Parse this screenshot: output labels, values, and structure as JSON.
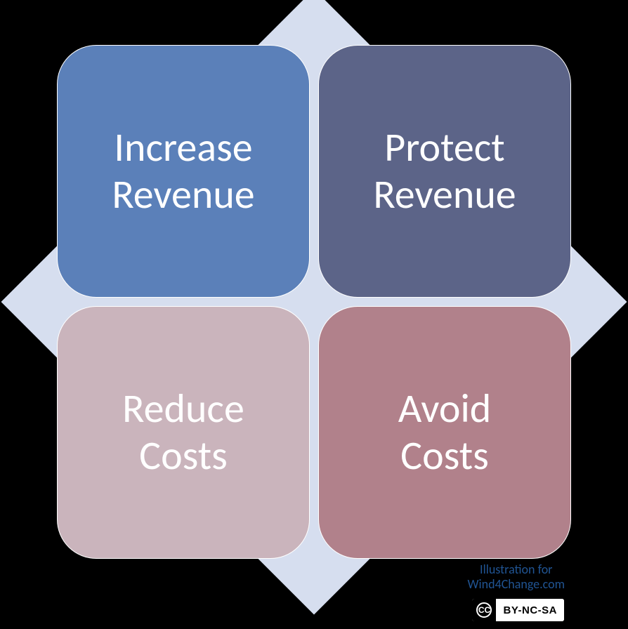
{
  "diagram": {
    "type": "infographic",
    "background_color": "#000000",
    "diamond_color": "#d6deef",
    "quadrants": [
      {
        "line1": "Increase",
        "line2": "Revenue",
        "bg_color": "#5b80b9",
        "text_color": "#ffffff"
      },
      {
        "line1": "Protect",
        "line2": "Revenue",
        "bg_color": "#5c6488",
        "text_color": "#ffffff"
      },
      {
        "line1": "Reduce",
        "line2": "Costs",
        "bg_color": "#cab4bc",
        "text_color": "#ffffff"
      },
      {
        "line1": "Avoid",
        "line2": "Costs",
        "bg_color": "#b1818b",
        "text_color": "#ffffff"
      }
    ],
    "font_size": 58,
    "font_weight": 300,
    "border_radius": 56,
    "grid_gap": 12,
    "grid_size": 732
  },
  "attribution": {
    "line1": "Illustration for",
    "line2": "Wind4Change.com",
    "color": "#205493",
    "font_size": 18
  },
  "license": {
    "badge_left": "CC",
    "badge_right": "BY-NC-SA",
    "left_bg": "#000000",
    "left_fg": "#ffffff",
    "right_bg": "#ffffff",
    "right_fg": "#000000"
  }
}
